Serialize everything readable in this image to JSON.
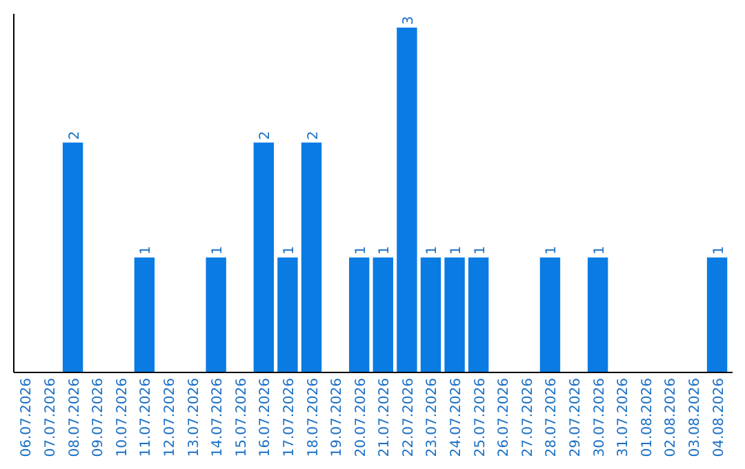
{
  "chart_data": {
    "type": "bar",
    "categories": [
      "06.07.2026",
      "07.07.2026",
      "08.07.2026",
      "09.07.2026",
      "10.07.2026",
      "11.07.2026",
      "12.07.2026",
      "13.07.2026",
      "14.07.2026",
      "15.07.2026",
      "16.07.2026",
      "17.07.2026",
      "18.07.2026",
      "19.07.2026",
      "20.07.2026",
      "21.07.2026",
      "22.07.2026",
      "23.07.2026",
      "24.07.2026",
      "25.07.2026",
      "26.07.2026",
      "27.07.2026",
      "28.07.2026",
      "29.07.2026",
      "30.07.2026",
      "31.07.2026",
      "01.08.2026",
      "02.08.2026",
      "03.08.2026",
      "04.08.2026"
    ],
    "values": [
      0,
      0,
      2,
      0,
      0,
      1,
      0,
      0,
      1,
      0,
      2,
      1,
      2,
      0,
      1,
      1,
      3,
      1,
      1,
      1,
      0,
      0,
      1,
      0,
      1,
      0,
      0,
      0,
      0,
      1
    ],
    "value_labels": [
      null,
      null,
      "2",
      null,
      null,
      "1",
      null,
      null,
      "1",
      null,
      "2",
      "1",
      "2",
      null,
      "1",
      "1",
      "3",
      "1",
      "1",
      "1",
      null,
      null,
      "1",
      null,
      "1",
      null,
      null,
      null,
      null,
      "1"
    ],
    "color": "#0a7be3"
  }
}
